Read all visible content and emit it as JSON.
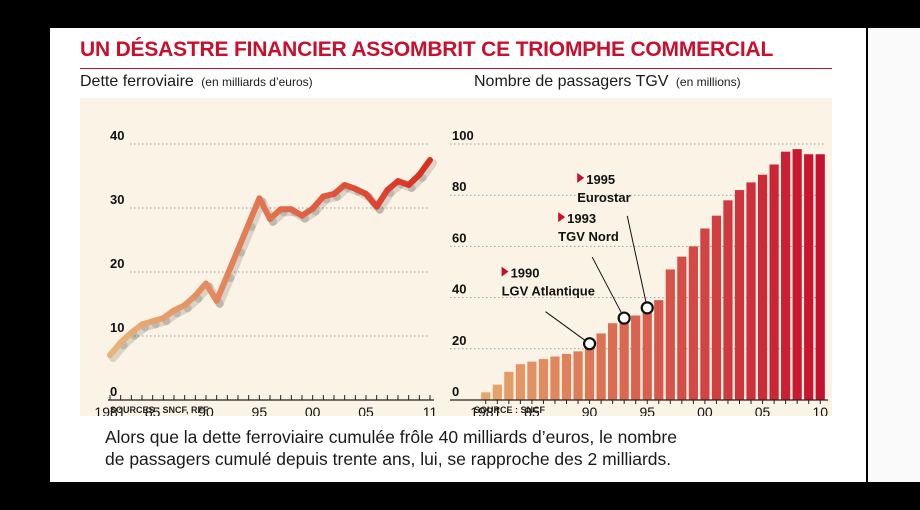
{
  "title": "UN DÉSASTRE FINANCIER ASSOMBRIT CE TRIOMPHE COMMERCIAL",
  "left": {
    "label": "Dette ferroviaire",
    "unit": "(en milliards d’euros)",
    "source": "SOURCES : SNCF, RFF"
  },
  "right": {
    "label": "Nombre de passagers TGV",
    "unit": "(en millions)",
    "source": "SOURCE : SNCF"
  },
  "caption": {
    "line1": "Alors que la dette ferroviaire cumulée frôle 40 milliards d’euros, le nombre",
    "line2": "de passagers cumulé depuis trente ans, lui, se rapproche des 2 milliards."
  },
  "colors": {
    "title": "#c8102e",
    "line_start": "#e8b47a",
    "line_end": "#d92b20",
    "bar_start": "#e6a66a",
    "bar_end": "#c8102e",
    "panel": "#fbf4e6"
  },
  "chart_data": [
    {
      "type": "line",
      "ylim": [
        0,
        40
      ],
      "yticks": [
        "0",
        "10",
        "20",
        "30",
        "40"
      ],
      "xlim": [
        1981,
        2011
      ],
      "xtick_labels": [
        "1981",
        "85",
        "90",
        "95",
        "00",
        "05",
        "11"
      ],
      "xtick_years": [
        1981,
        1985,
        1990,
        1995,
        2000,
        2005,
        2011
      ],
      "grid": true,
      "x": [
        1981,
        1982,
        1983,
        1984,
        1985,
        1986,
        1987,
        1988,
        1989,
        1990,
        1991,
        1992,
        1993,
        1994,
        1995,
        1996,
        1997,
        1998,
        1999,
        2000,
        2001,
        2002,
        2003,
        2004,
        2005,
        2006,
        2007,
        2008,
        2009,
        2010,
        2011
      ],
      "y": [
        7,
        9,
        10.5,
        11.8,
        12.3,
        12.8,
        14,
        14.8,
        16.3,
        18.2,
        15.5,
        19.5,
        23.5,
        27.5,
        31.5,
        28.3,
        29.8,
        29.8,
        28.8,
        29.9,
        31.8,
        32.2,
        33.6,
        33.0,
        32.2,
        30.2,
        32.8,
        34.2,
        33.6,
        35.2,
        37.5
      ]
    },
    {
      "type": "bar",
      "ylim": [
        0,
        100
      ],
      "yticks": [
        "0",
        "20",
        "40",
        "60",
        "80",
        "100"
      ],
      "xtick_labels": [
        "1981",
        "85",
        "90",
        "95",
        "00",
        "05",
        "10"
      ],
      "xtick_years": [
        1981,
        1985,
        1990,
        1995,
        2000,
        2005,
        2010
      ],
      "grid": true,
      "x": [
        1981,
        1982,
        1983,
        1984,
        1985,
        1986,
        1987,
        1988,
        1989,
        1990,
        1991,
        1992,
        1993,
        1994,
        1995,
        1996,
        1997,
        1998,
        1999,
        2000,
        2001,
        2002,
        2003,
        2004,
        2005,
        2006,
        2007,
        2008,
        2009,
        2010
      ],
      "values": [
        3,
        6,
        11,
        14,
        15,
        16,
        17,
        18,
        19,
        22,
        26,
        30,
        32,
        33,
        36,
        39,
        51,
        56,
        60,
        67,
        72,
        78,
        82,
        85,
        88,
        92,
        97,
        98,
        96,
        96
      ],
      "annotations": [
        {
          "year": 1990,
          "line1": "1990",
          "line2": "LGV Atlantique"
        },
        {
          "year": 1993,
          "line1": "1993",
          "line2": "TGV Nord"
        },
        {
          "year": 1995,
          "line1": "1995",
          "line2": "Eurostar"
        }
      ]
    }
  ]
}
